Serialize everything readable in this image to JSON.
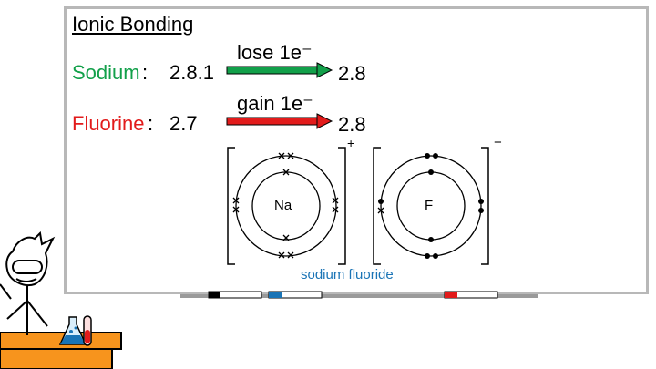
{
  "title": "Ionic Bonding",
  "sodium": {
    "name": "Sodium",
    "colon": ":",
    "config": "2.8.1",
    "process": "lose 1e⁻",
    "result": "2.8",
    "symbol": "Na",
    "charge": "+",
    "color": "#12a04a"
  },
  "fluorine": {
    "name": "Fluorine",
    "colon": ":",
    "config": "2.7",
    "process": "gain 1e⁻",
    "result": "2.8",
    "symbol": "F",
    "charge": "−",
    "color": "#e21b1b"
  },
  "compound": {
    "name": "sodium fluoride",
    "color": "#1a74b6"
  },
  "markers": [
    "black",
    "blue",
    "red"
  ],
  "props": [
    "stick-figure-scientist",
    "flask-icon",
    "test-tube-icon"
  ]
}
